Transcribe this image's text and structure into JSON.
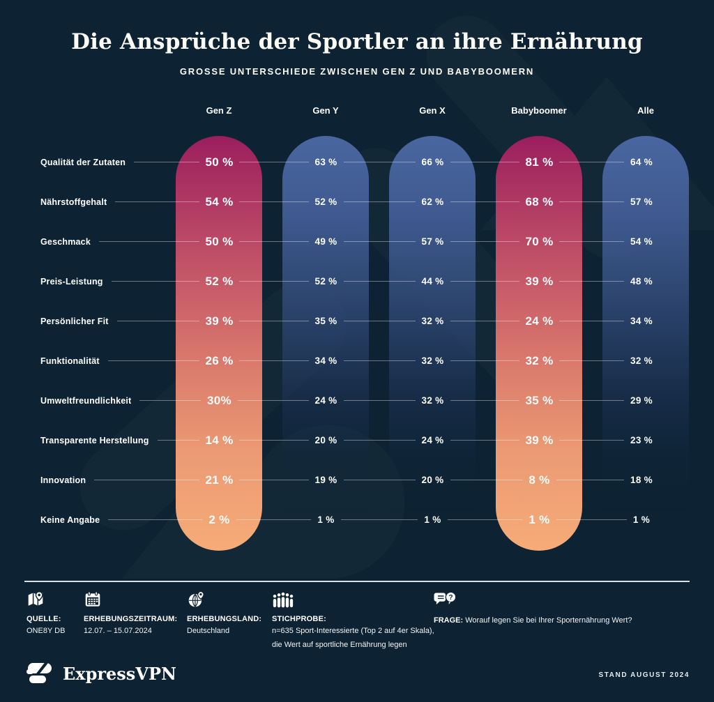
{
  "header": {
    "title": "Die Ansprüche der Sportler an ihre Ernährung",
    "subtitle": "GROSSE UNTERSCHIEDE ZWISCHEN GEN Z UND BABYBOOMERN"
  },
  "chart_data": {
    "type": "table",
    "title": "Die Ansprüche der Sportler an ihre Ernährung",
    "subtitle": "GROSSE UNTERSCHIEDE ZWISCHEN GEN Z UND BABYBOOMERN",
    "columns": [
      "Gen Z",
      "Gen Y",
      "Gen X",
      "Babyboomer",
      "Alle"
    ],
    "highlighted_columns": [
      0,
      3
    ],
    "categories": [
      "Qualität der Zutaten",
      "Nährstoffgehalt",
      "Geschmack",
      "Preis-Leistung",
      "Persönlicher Fit",
      "Funktionalität",
      "Umweltfreundlichkeit",
      "Transparente Herstellung",
      "Innovation",
      "Keine Angabe"
    ],
    "unit": "%",
    "series": [
      {
        "name": "Gen Z",
        "values": [
          50,
          54,
          50,
          52,
          39,
          26,
          30,
          14,
          21,
          2
        ],
        "labels": [
          "50 %",
          "54 %",
          "50 %",
          "52 %",
          "39 %",
          "26 %",
          "30%",
          "14 %",
          "21 %",
          "2 %"
        ]
      },
      {
        "name": "Gen Y",
        "values": [
          63,
          52,
          49,
          52,
          35,
          34,
          24,
          20,
          19,
          1
        ],
        "labels": [
          "63 %",
          "52 %",
          "49 %",
          "52 %",
          "35 %",
          "34 %",
          "24 %",
          "20 %",
          "19 %",
          "1 %"
        ]
      },
      {
        "name": "Gen X",
        "values": [
          66,
          62,
          57,
          44,
          32,
          32,
          32,
          24,
          20,
          1
        ],
        "labels": [
          "66 %",
          "62 %",
          "57 %",
          "44 %",
          "32 %",
          "32 %",
          "32 %",
          "24 %",
          "20 %",
          "1 %"
        ]
      },
      {
        "name": "Babyboomer",
        "values": [
          81,
          68,
          70,
          39,
          24,
          32,
          35,
          39,
          8,
          1
        ],
        "labels": [
          "81 %",
          "68 %",
          "70 %",
          "39 %",
          "24 %",
          "32 %",
          "35 %",
          "39 %",
          "8 %",
          "1 %"
        ]
      },
      {
        "name": "Alle",
        "values": [
          64,
          57,
          54,
          48,
          34,
          32,
          29,
          23,
          18,
          1
        ],
        "labels": [
          "64 %",
          "57 %",
          "54 %",
          "48 %",
          "34 %",
          "32 %",
          "29 %",
          "23 %",
          "18 %",
          "1 %"
        ]
      }
    ]
  },
  "colors": {
    "background": "#0d2333",
    "highlight_gradient_top": "#9a1e5e",
    "highlight_gradient_bottom": "#f6ab78",
    "regular_pill_top": "#4966a1",
    "guide_line": "rgba(255,255,255,0.38)",
    "text": "#ffffff"
  },
  "footer": {
    "items": [
      {
        "icon": "map",
        "label": "QUELLE:",
        "lines": [
          "ONE8Y DB"
        ]
      },
      {
        "icon": "calendar",
        "label": "ERHEBUNGSZEITRAUM:",
        "lines": [
          "12.07. – 15.07.2024"
        ]
      },
      {
        "icon": "globe",
        "label": "ERHEBUNGSLAND:",
        "lines": [
          "Deutschland"
        ]
      },
      {
        "icon": "people",
        "label": "STICHPROBE:",
        "lines": [
          "n=635 Sport-Interessierte (Top 2 auf 4er Skala),",
          "die Wert auf sportliche Ernährung legen"
        ]
      },
      {
        "icon": "speech",
        "label": "FRAGE:",
        "inline_text": "Worauf legen Sie bei Ihrer Sporternährung Wert?"
      }
    ]
  },
  "brand": {
    "name": "ExpressVPN",
    "stand": "STAND AUGUST 2024"
  }
}
